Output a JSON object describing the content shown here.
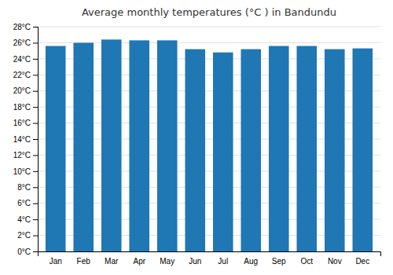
{
  "chart_data": {
    "type": "bar",
    "title": "Average monthly temperatures (°C ) in Bandundu",
    "categories": [
      "Jan",
      "Feb",
      "Mar",
      "Apr",
      "May",
      "Jun",
      "Jul",
      "Aug",
      "Sep",
      "Oct",
      "Nov",
      "Dec"
    ],
    "values": [
      25.6,
      26.0,
      26.4,
      26.3,
      26.3,
      25.2,
      24.8,
      25.2,
      25.6,
      25.6,
      25.2,
      25.3
    ],
    "ylim": [
      0,
      28
    ],
    "yticks": [
      {
        "value": 0,
        "label": "0°C"
      },
      {
        "value": 2,
        "label": "2°C"
      },
      {
        "value": 4,
        "label": "4°C"
      },
      {
        "value": 6,
        "label": "6°C"
      },
      {
        "value": 8,
        "label": "8°C"
      },
      {
        "value": 10,
        "label": "10°C"
      },
      {
        "value": 12,
        "label": "12°C"
      },
      {
        "value": 14,
        "label": "14°C"
      },
      {
        "value": 16,
        "label": "16°C"
      },
      {
        "value": 18,
        "label": "18°C"
      },
      {
        "value": 20,
        "label": "20°C"
      },
      {
        "value": 22,
        "label": "22°C"
      },
      {
        "value": 24,
        "label": "24°C"
      },
      {
        "value": 26,
        "label": "26°C"
      },
      {
        "value": 28,
        "label": "28°C"
      }
    ],
    "grid": true
  }
}
